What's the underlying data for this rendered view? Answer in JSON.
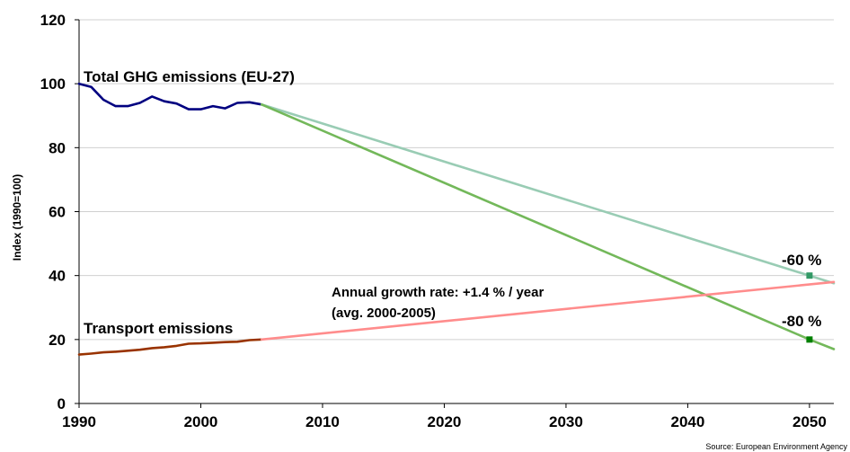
{
  "chart_data": {
    "type": "line",
    "ylabel": "Index (1990=100)",
    "xlabel": "",
    "xlim": [
      1990,
      2052
    ],
    "ylim": [
      0,
      120
    ],
    "x_ticks": [
      1990,
      2000,
      2010,
      2020,
      2030,
      2040,
      2050
    ],
    "y_ticks": [
      0,
      20,
      40,
      60,
      80,
      100,
      120
    ],
    "grid": "horizontal",
    "series": [
      {
        "name": "Total GHG emissions (EU-27)",
        "color": "#000080",
        "points": [
          [
            1990,
            100
          ],
          [
            1991,
            99
          ],
          [
            1992,
            95
          ],
          [
            1993,
            93
          ],
          [
            1994,
            93
          ],
          [
            1995,
            94
          ],
          [
            1996,
            96
          ],
          [
            1997,
            94.5
          ],
          [
            1998,
            93.8
          ],
          [
            1999,
            92
          ],
          [
            2000,
            92
          ],
          [
            2001,
            93
          ],
          [
            2002,
            92.3
          ],
          [
            2003,
            94
          ],
          [
            2004,
            94.2
          ],
          [
            2005,
            93.5
          ]
        ]
      },
      {
        "name": "",
        "color": "#99CCB4",
        "points": [
          [
            2005,
            93.5
          ],
          [
            2052,
            37.6
          ]
        ]
      },
      {
        "name": "",
        "color": "#73B85A",
        "points": [
          [
            2005,
            93.5
          ],
          [
            2050,
            20
          ],
          [
            2052,
            17
          ]
        ]
      },
      {
        "name": "Transport emissions",
        "color": "#993300",
        "points": [
          [
            1990,
            15.3
          ],
          [
            1991,
            15.6
          ],
          [
            1992,
            16
          ],
          [
            1993,
            16.2
          ],
          [
            1994,
            16.5
          ],
          [
            1995,
            16.8
          ],
          [
            1996,
            17.3
          ],
          [
            1997,
            17.6
          ],
          [
            1998,
            18
          ],
          [
            1999,
            18.7
          ],
          [
            2000,
            18.8
          ],
          [
            2001,
            19
          ],
          [
            2002,
            19.2
          ],
          [
            2003,
            19.3
          ],
          [
            2004,
            19.8
          ],
          [
            2005,
            20
          ]
        ]
      },
      {
        "name": "",
        "color": "#FF8C8C",
        "points": [
          [
            2005,
            20
          ],
          [
            2052,
            38
          ]
        ]
      }
    ],
    "markers": [
      {
        "x": 2050,
        "y": 40,
        "color": "#339966"
      },
      {
        "x": 2050,
        "y": 20,
        "color": "#008000"
      }
    ],
    "annotations": {
      "total_label": "Total GHG emissions (EU-27)",
      "transport_label": "Transport emissions",
      "target_60": "-60 %",
      "target_80": "-80 %",
      "growth_line1": "Annual growth rate: +1.4 % / year",
      "growth_line2": "(avg. 2000-2005)",
      "source": "Source: European Environment Agency"
    }
  }
}
